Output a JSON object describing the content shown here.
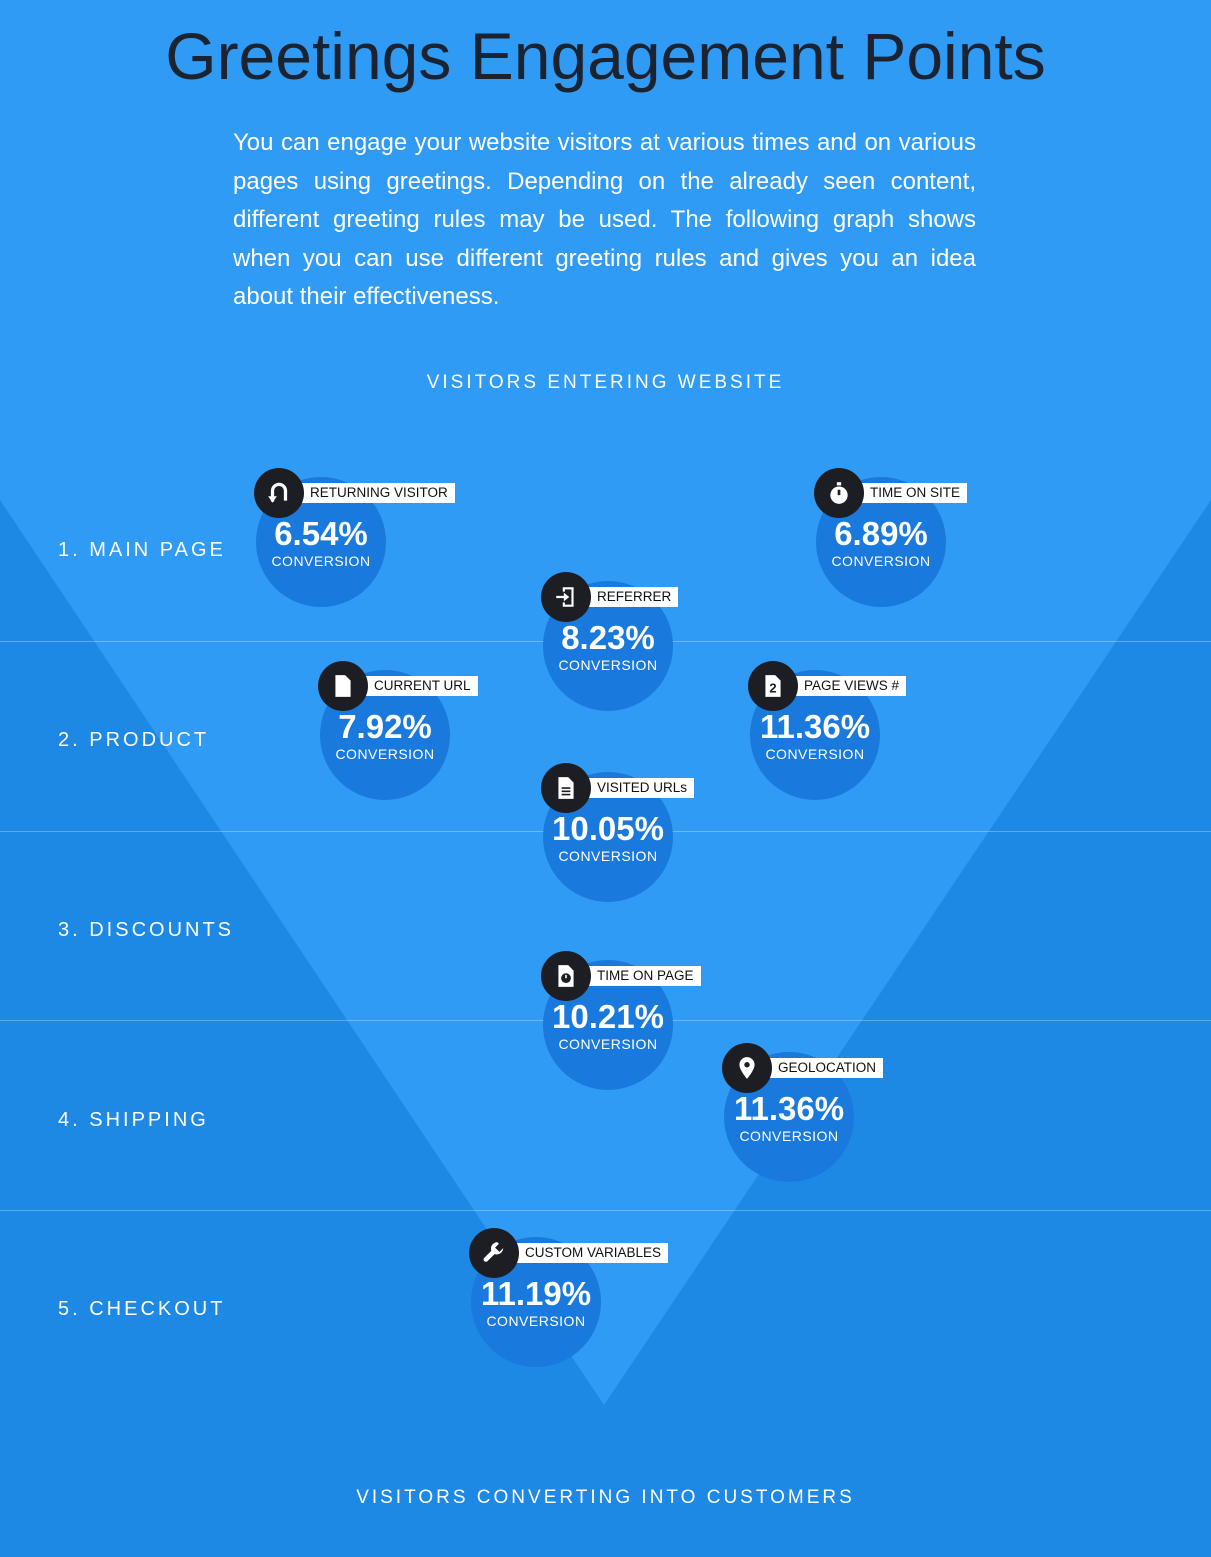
{
  "title": "Greetings Engagement Points",
  "intro": "You can engage your website visitors at various times and on various pages using greetings. Depending on the already seen content, different greeting rules may be used. The following graph shows when you can use different greeting rules and gives you an idea about their effectiveness.",
  "flow": {
    "top": "VISITORS ENTERING WEBSITE",
    "bottom": "VISITORS CONVERTING INTO CUSTOMERS"
  },
  "stages": [
    {
      "label": "1. MAIN PAGE"
    },
    {
      "label": "2. PRODUCT"
    },
    {
      "label": "3. DISCOUNTS"
    },
    {
      "label": "4. SHIPPING"
    },
    {
      "label": "5. CHECKOUT"
    }
  ],
  "metrics": [
    {
      "tag": "RETURNING VISITOR",
      "value": "6.54%",
      "unit": "CONVERSION",
      "icon": "u-turn-icon",
      "stage": "1. MAIN PAGE"
    },
    {
      "tag": "TIME ON SITE",
      "value": "6.89%",
      "unit": "CONVERSION",
      "icon": "stopwatch-icon",
      "stage": "1. MAIN PAGE"
    },
    {
      "tag": "REFERRER",
      "value": "8.23%",
      "unit": "CONVERSION",
      "icon": "sign-in-icon",
      "stage": "1. MAIN PAGE"
    },
    {
      "tag": "CURRENT URL",
      "value": "7.92%",
      "unit": "CONVERSION",
      "icon": "document-icon",
      "stage": "2. PRODUCT"
    },
    {
      "tag": "PAGE VIEWS #",
      "value": "11.36%",
      "unit": "CONVERSION",
      "icon": "page-count-icon",
      "icon_text": "2",
      "stage": "2. PRODUCT"
    },
    {
      "tag": "VISITED URLs",
      "value": "10.05%",
      "unit": "CONVERSION",
      "icon": "document-lines-icon",
      "stage": "2. PRODUCT"
    },
    {
      "tag": "TIME ON PAGE",
      "value": "10.21%",
      "unit": "CONVERSION",
      "icon": "page-timer-icon",
      "stage": "3. DISCOUNTS"
    },
    {
      "tag": "GEOLOCATION",
      "value": "11.36%",
      "unit": "CONVERSION",
      "icon": "map-pin-icon",
      "stage": "4. SHIPPING"
    },
    {
      "tag": "CUSTOM VARIABLES",
      "value": "11.19%",
      "unit": "CONVERSION",
      "icon": "wrench-icon",
      "stage": "5. CHECKOUT"
    }
  ],
  "colors": {
    "top_background": "#2f9bf5",
    "band_background": "#1e88e5",
    "funnel": "#2f9bf5",
    "circle": "#1979dc",
    "badge": "#1c1e24",
    "title_text": "#1b2330"
  }
}
